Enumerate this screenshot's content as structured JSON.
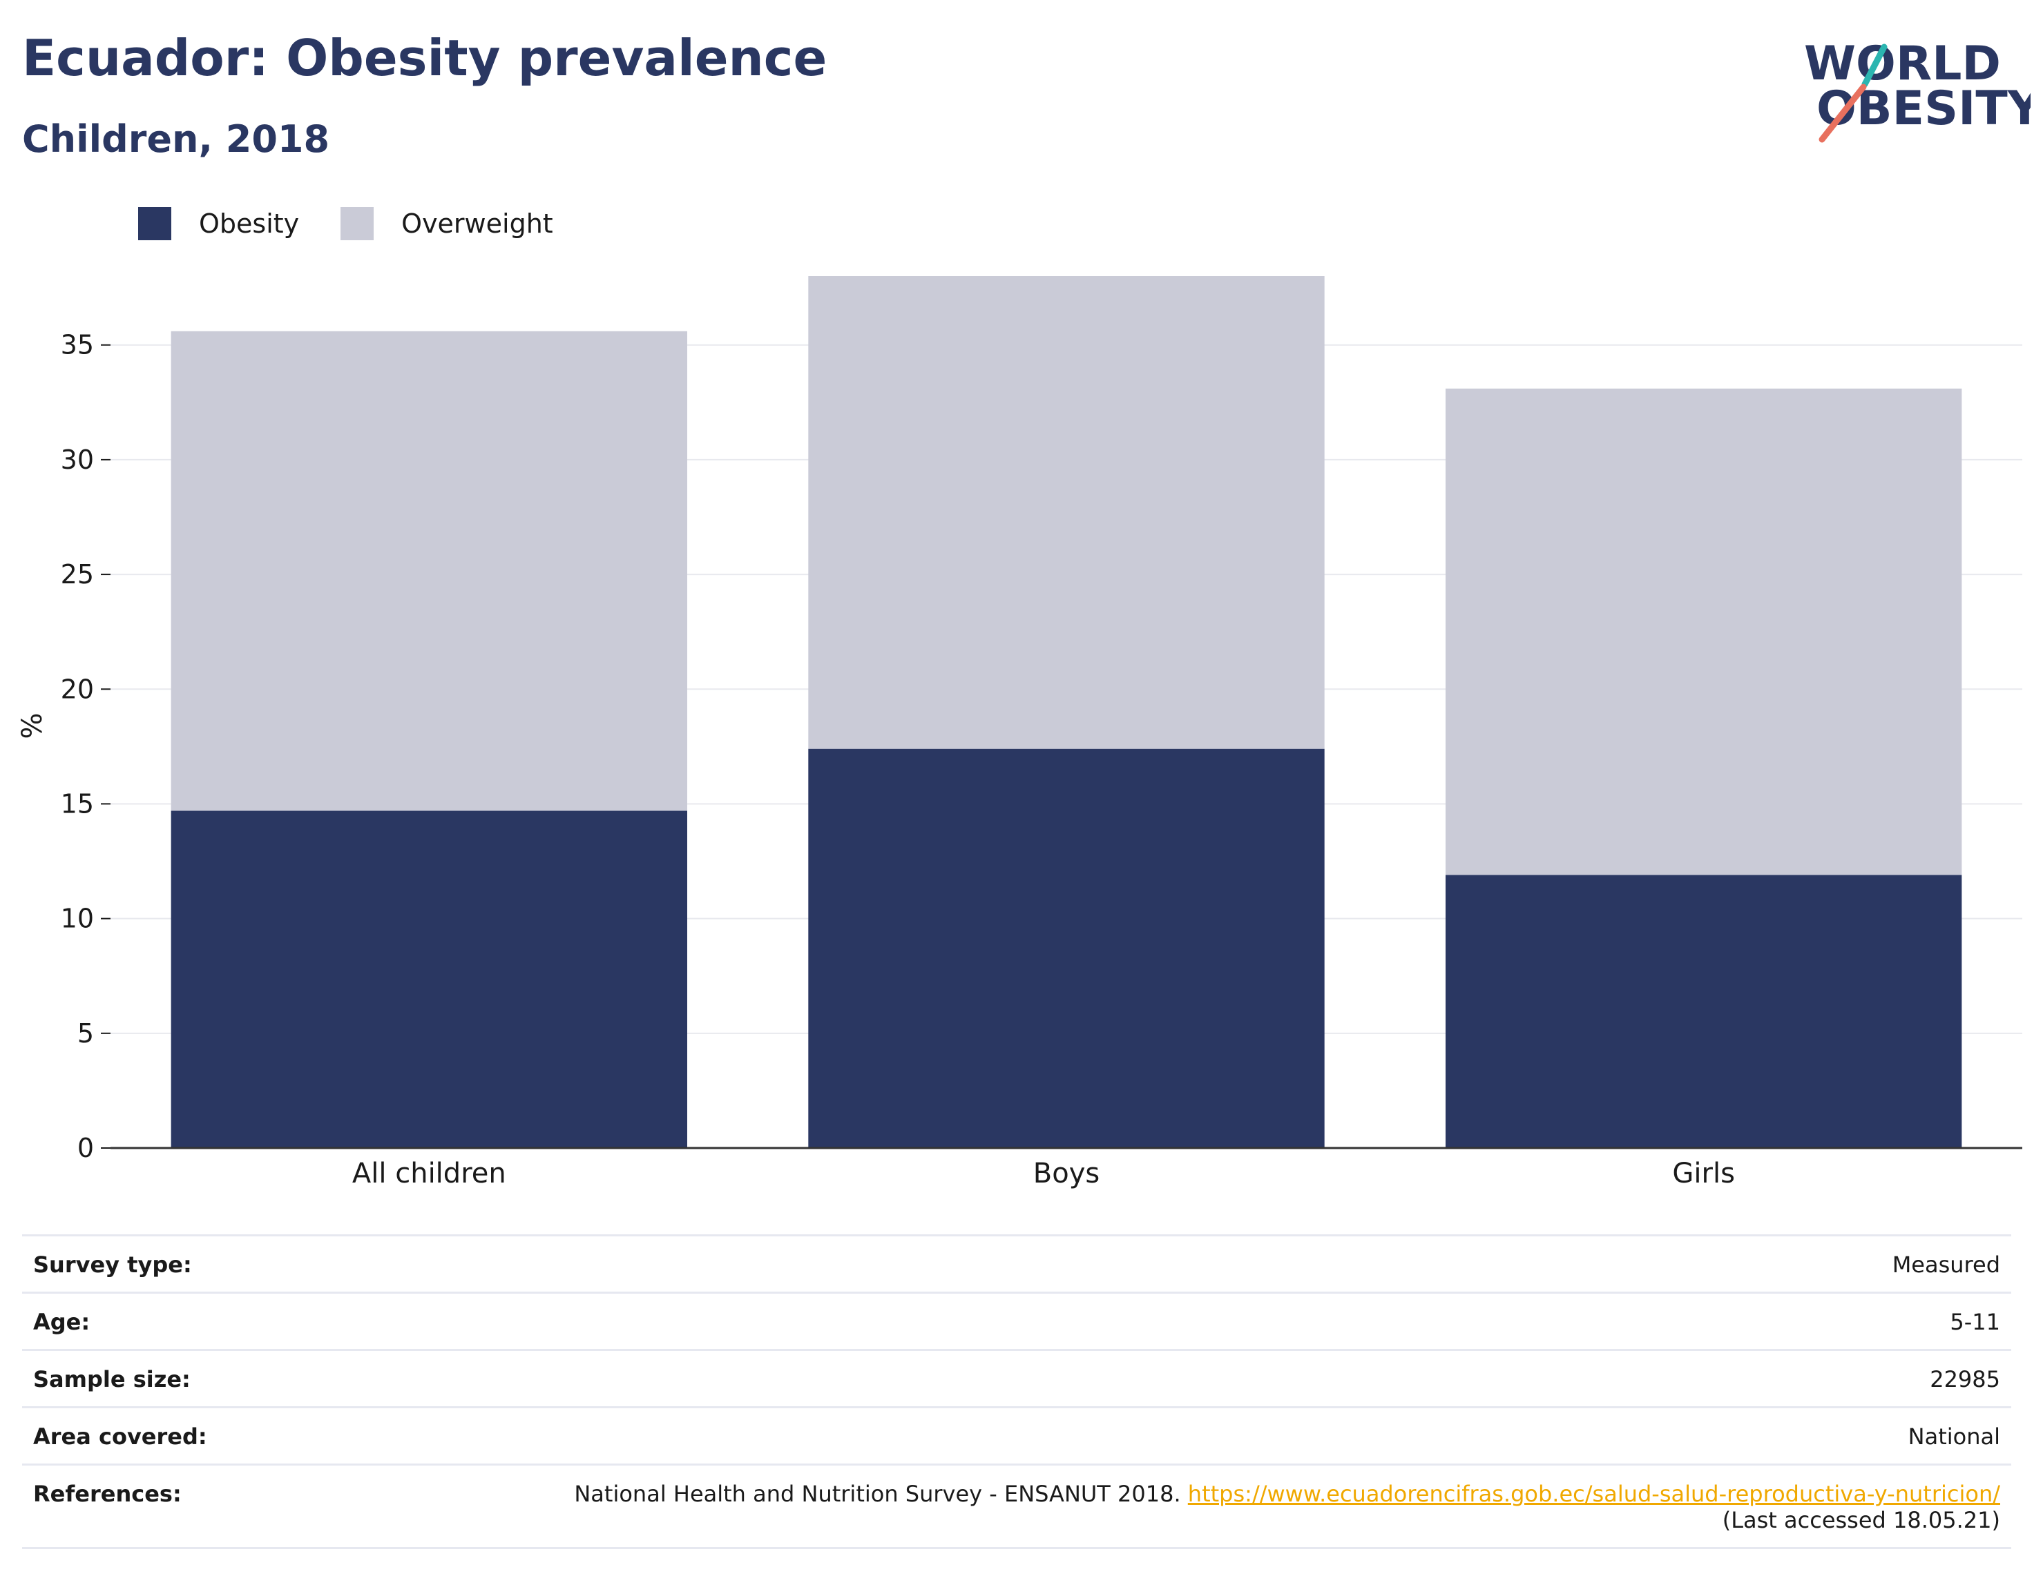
{
  "header": {
    "title": "Ecuador: Obesity prevalence",
    "subtitle": "Children, 2018"
  },
  "logo": {
    "line1": "WORLD",
    "line2": "OBESITY",
    "colors": {
      "text": "#2a3762",
      "slash_teal": "#2bb5b0",
      "slash_coral": "#e8705e"
    }
  },
  "legend": [
    {
      "label": "Obesity",
      "color": "#2a3762"
    },
    {
      "label": "Overweight",
      "color": "#cacbd7"
    }
  ],
  "chart_data": {
    "type": "bar",
    "stacked": true,
    "categories": [
      "All children",
      "Boys",
      "Girls"
    ],
    "series": [
      {
        "name": "Obesity",
        "values": [
          14.7,
          17.4,
          11.9
        ],
        "color": "#2a3762"
      },
      {
        "name": "Overweight",
        "values": [
          20.9,
          20.6,
          21.2
        ],
        "color": "#cacbd7"
      }
    ],
    "ylabel": "%",
    "ylim": [
      0,
      38
    ],
    "yticks": [
      0,
      5,
      10,
      15,
      20,
      25,
      30,
      35
    ],
    "grid": true,
    "legend_position": "top-left"
  },
  "info": {
    "survey_type": {
      "label": "Survey type:",
      "value": "Measured"
    },
    "age": {
      "label": "Age:",
      "value": "5-11"
    },
    "sample_size": {
      "label": "Sample size:",
      "value": "22985"
    },
    "area_covered": {
      "label": "Area covered:",
      "value": "National"
    },
    "references": {
      "label": "References:",
      "text": "National Health and Nutrition Survey - ENSANUT 2018.",
      "link": "https://www.ecuadorencifras.gob.ec/salud-salud-reproductiva-y-nutricion/",
      "accessed": "(Last accessed 18.05.21)"
    }
  }
}
